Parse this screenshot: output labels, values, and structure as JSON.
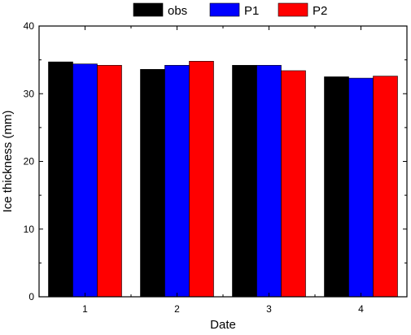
{
  "chart_data": {
    "type": "bar",
    "title": "",
    "xlabel": "Date",
    "ylabel": "Ice thickness (mm)",
    "categories": [
      "1",
      "2",
      "3",
      "4"
    ],
    "ylim": [
      0,
      40
    ],
    "yticks": [
      "0",
      "10",
      "20",
      "30",
      "40"
    ],
    "grid": false,
    "legend_position": "top",
    "series": [
      {
        "name": "obs",
        "color": "#000000",
        "values": [
          34.7,
          33.6,
          34.2,
          32.5
        ]
      },
      {
        "name": "P1",
        "color": "#0000ff",
        "values": [
          34.4,
          34.2,
          34.2,
          32.3
        ]
      },
      {
        "name": "P2",
        "color": "#ff0000",
        "values": [
          34.2,
          34.8,
          33.4,
          32.6
        ]
      }
    ]
  }
}
